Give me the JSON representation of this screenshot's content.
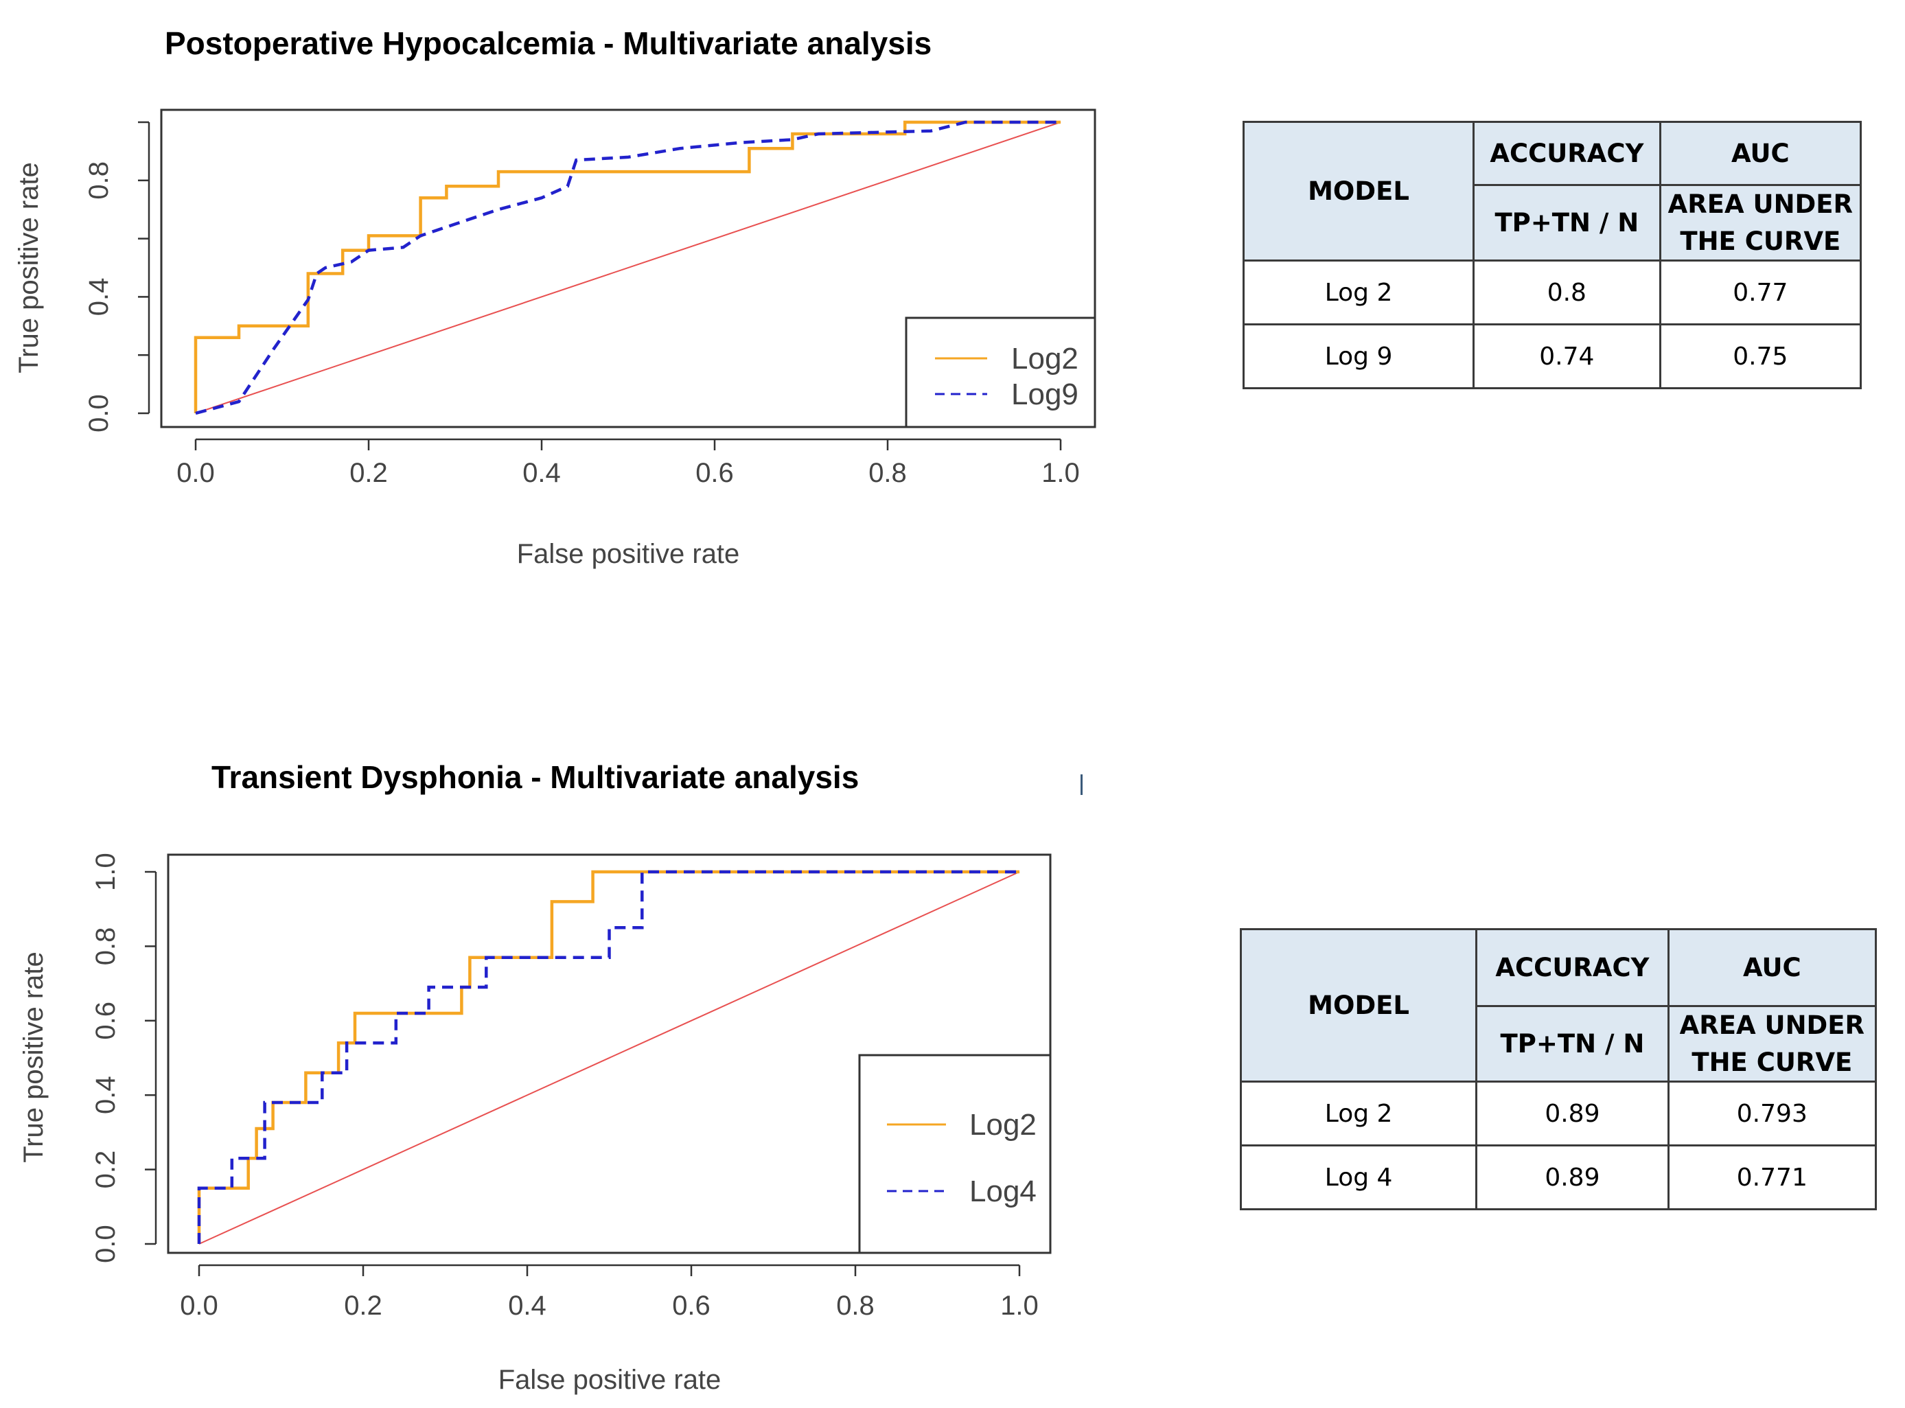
{
  "chart_data": [
    {
      "type": "line",
      "title": "Postoperative Hypocalcemia - Multivariate analysis",
      "xlabel": "False positive rate",
      "ylabel": "True positive rate",
      "xlim": [
        0,
        1
      ],
      "ylim": [
        0,
        1
      ],
      "xticks": [
        "0.0",
        "0.2",
        "0.4",
        "0.6",
        "0.8",
        "1.0"
      ],
      "yticks": [
        "0.0",
        "0.4",
        "0.8"
      ],
      "legend": {
        "position": "bottom-right",
        "entries": [
          "Log2",
          "Log9"
        ]
      },
      "series": [
        {
          "name": "Log2",
          "color": "#f5a623",
          "style": "solid",
          "x": [
            0,
            0,
            0.05,
            0.05,
            0.13,
            0.13,
            0.17,
            0.17,
            0.2,
            0.2,
            0.26,
            0.26,
            0.29,
            0.29,
            0.35,
            0.35,
            0.64,
            0.64,
            0.69,
            0.69,
            0.82,
            0.82,
            1.0
          ],
          "y": [
            0,
            0.26,
            0.26,
            0.3,
            0.3,
            0.48,
            0.48,
            0.56,
            0.56,
            0.61,
            0.61,
            0.74,
            0.74,
            0.78,
            0.78,
            0.83,
            0.83,
            0.91,
            0.91,
            0.96,
            0.96,
            1.0,
            1.0
          ]
        },
        {
          "name": "Log9",
          "color": "#2222cc",
          "style": "dashed",
          "x": [
            0,
            0.05,
            0.09,
            0.13,
            0.14,
            0.15,
            0.18,
            0.2,
            0.24,
            0.26,
            0.28,
            0.3,
            0.35,
            0.4,
            0.43,
            0.44,
            0.5,
            0.56,
            0.63,
            0.69,
            0.72,
            0.85,
            0.89,
            1.0
          ],
          "y": [
            0,
            0.04,
            0.22,
            0.39,
            0.48,
            0.5,
            0.52,
            0.56,
            0.57,
            0.61,
            0.63,
            0.65,
            0.7,
            0.74,
            0.78,
            0.87,
            0.88,
            0.91,
            0.93,
            0.94,
            0.96,
            0.97,
            1.0,
            1.0
          ]
        },
        {
          "name": "reference",
          "color": "#e85050",
          "style": "solid",
          "x": [
            0,
            1
          ],
          "y": [
            0,
            1
          ]
        }
      ]
    },
    {
      "type": "line",
      "title": "Transient Dysphonia - Multivariate analysis",
      "xlabel": "False positive rate",
      "ylabel": "True positive rate",
      "xlim": [
        0,
        1
      ],
      "ylim": [
        0,
        1
      ],
      "xticks": [
        "0.0",
        "0.2",
        "0.4",
        "0.6",
        "0.8",
        "1.0"
      ],
      "yticks": [
        "0.0",
        "0.2",
        "0.4",
        "0.6",
        "0.8",
        "1.0"
      ],
      "legend": {
        "position": "bottom-right",
        "entries": [
          "Log2",
          "Log4"
        ]
      },
      "series": [
        {
          "name": "Log2",
          "color": "#f5a623",
          "style": "solid",
          "x": [
            0,
            0,
            0.06,
            0.06,
            0.07,
            0.07,
            0.09,
            0.09,
            0.1,
            0.1,
            0.13,
            0.13,
            0.17,
            0.17,
            0.19,
            0.19,
            0.32,
            0.32,
            0.33,
            0.33,
            0.43,
            0.43,
            0.48,
            0.48,
            1.0
          ],
          "y": [
            0,
            0.15,
            0.15,
            0.23,
            0.23,
            0.31,
            0.31,
            0.38,
            0.38,
            0.38,
            0.38,
            0.46,
            0.46,
            0.54,
            0.54,
            0.62,
            0.62,
            0.69,
            0.69,
            0.77,
            0.77,
            0.92,
            0.92,
            1.0,
            1.0
          ]
        },
        {
          "name": "Log4",
          "color": "#2222cc",
          "style": "dashed",
          "x": [
            0,
            0,
            0.04,
            0.04,
            0.08,
            0.08,
            0.15,
            0.15,
            0.18,
            0.18,
            0.24,
            0.24,
            0.28,
            0.28,
            0.35,
            0.35,
            0.44,
            0.44,
            0.5,
            0.5,
            0.54,
            0.54,
            1.0
          ],
          "y": [
            0,
            0.15,
            0.15,
            0.23,
            0.23,
            0.38,
            0.38,
            0.46,
            0.46,
            0.54,
            0.54,
            0.62,
            0.62,
            0.69,
            0.69,
            0.77,
            0.77,
            0.77,
            0.77,
            0.85,
            0.85,
            1.0,
            1.0
          ]
        },
        {
          "name": "reference",
          "color": "#e85050",
          "style": "solid",
          "x": [
            0,
            1
          ],
          "y": [
            0,
            1
          ]
        }
      ]
    }
  ],
  "tables": [
    {
      "header": {
        "model": "MODEL",
        "accuracy": "ACCURACY",
        "accuracy_sub": "TP+TN / N",
        "auc": "AUC",
        "auc_sub_1": "AREA UNDER",
        "auc_sub_2": "THE CURVE"
      },
      "rows": [
        {
          "model": "Log 2",
          "accuracy": "0.8",
          "auc": "0.77"
        },
        {
          "model": "Log 9",
          "accuracy": "0.74",
          "auc": "0.75"
        }
      ]
    },
    {
      "header": {
        "model": "MODEL",
        "accuracy": "ACCURACY",
        "accuracy_sub": "TP+TN / N",
        "auc": "AUC",
        "auc_sub_1": "AREA UNDER",
        "auc_sub_2": "THE CURVE"
      },
      "rows": [
        {
          "model": "Log 2",
          "accuracy": "0.89",
          "auc": "0.793"
        },
        {
          "model": "Log 4",
          "accuracy": "0.89",
          "auc": "0.771"
        }
      ]
    }
  ]
}
